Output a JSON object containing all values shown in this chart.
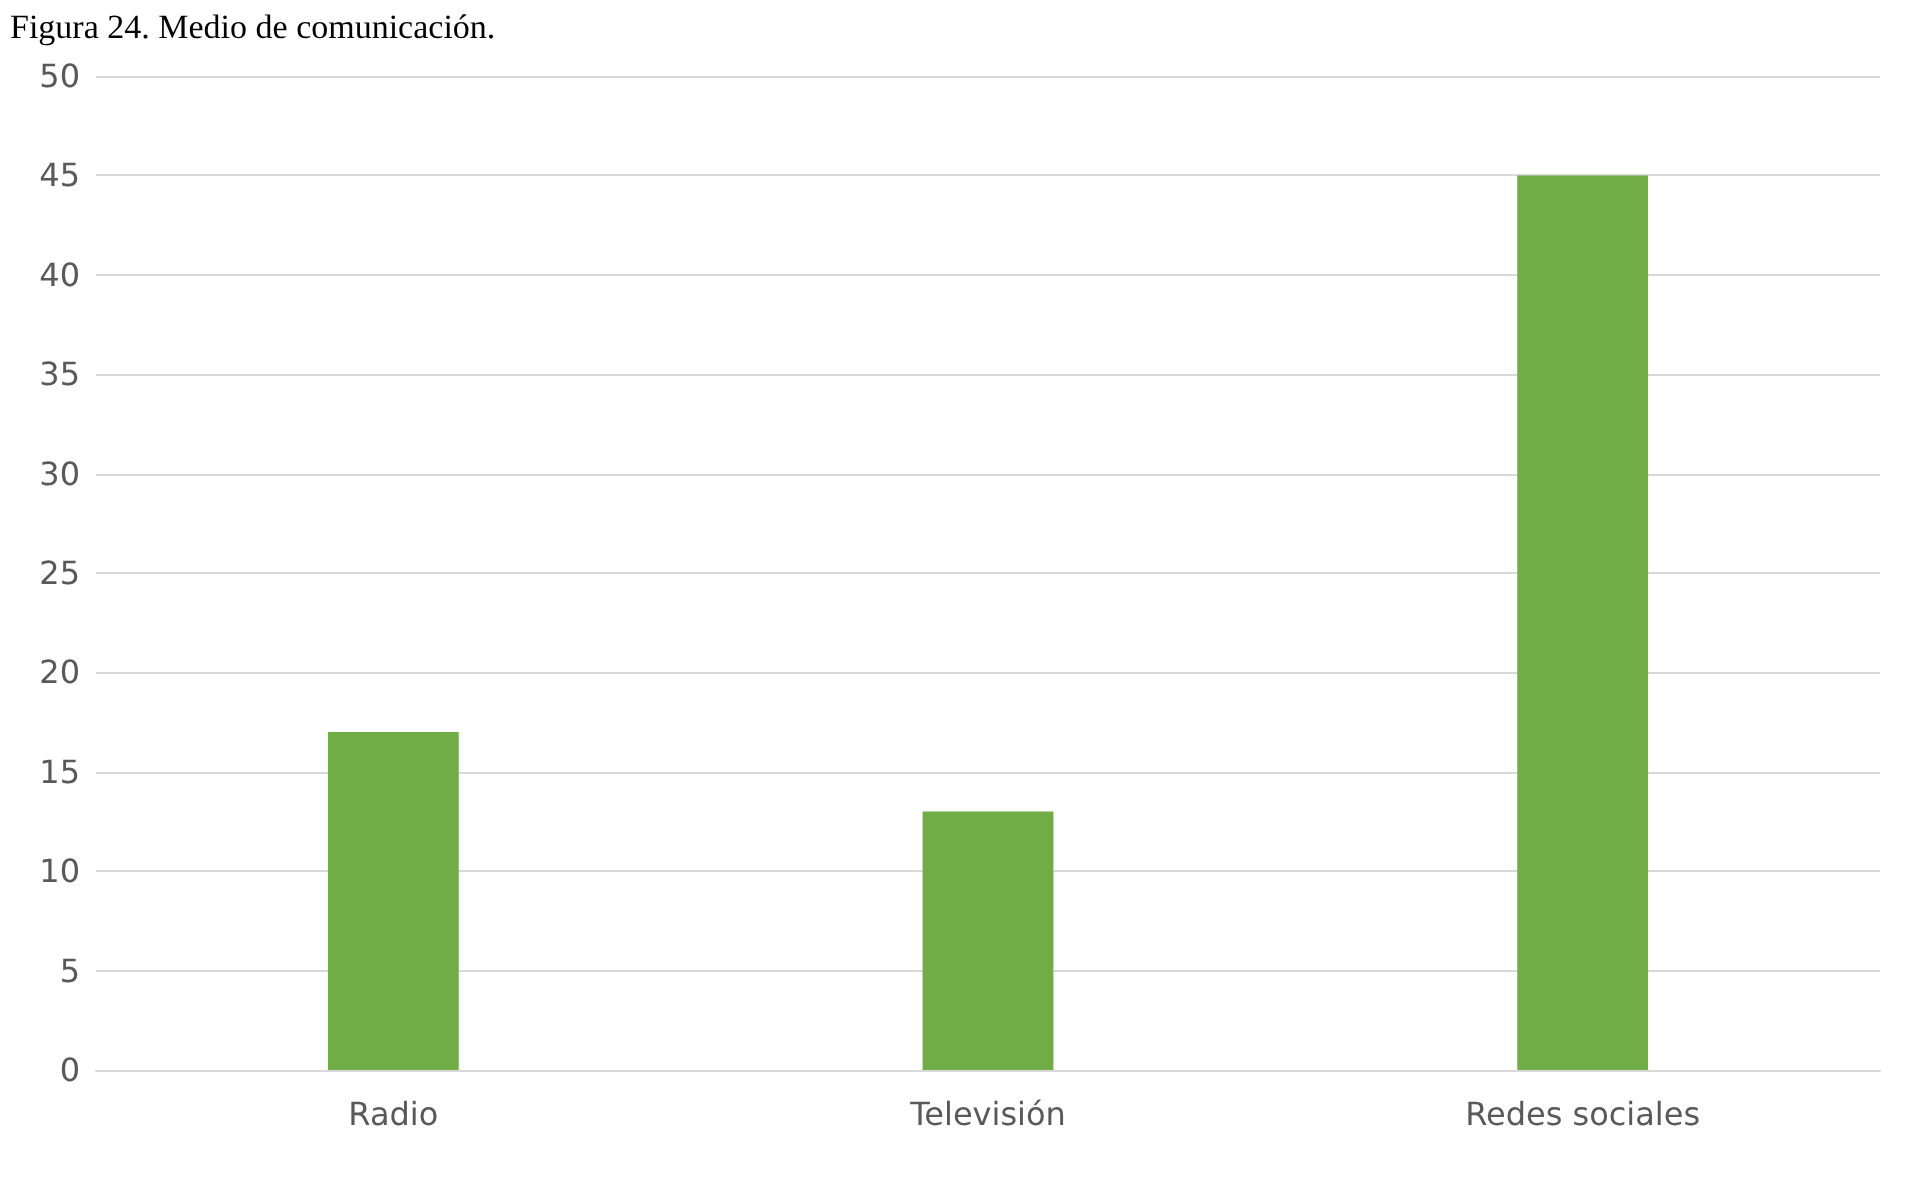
{
  "chart_data": {
    "type": "bar",
    "title": "Figura 24. Medio de comunicación.",
    "categories": [
      "Radio",
      "Televisión",
      "Redes sociales"
    ],
    "series": [
      {
        "color": "#70ad47",
        "values": [
          17,
          13,
          45
        ]
      }
    ],
    "ylim": [
      0,
      50
    ],
    "yticks": [
      0,
      5,
      10,
      15,
      20,
      25,
      30,
      35,
      40,
      45,
      50
    ],
    "grid": "y"
  }
}
